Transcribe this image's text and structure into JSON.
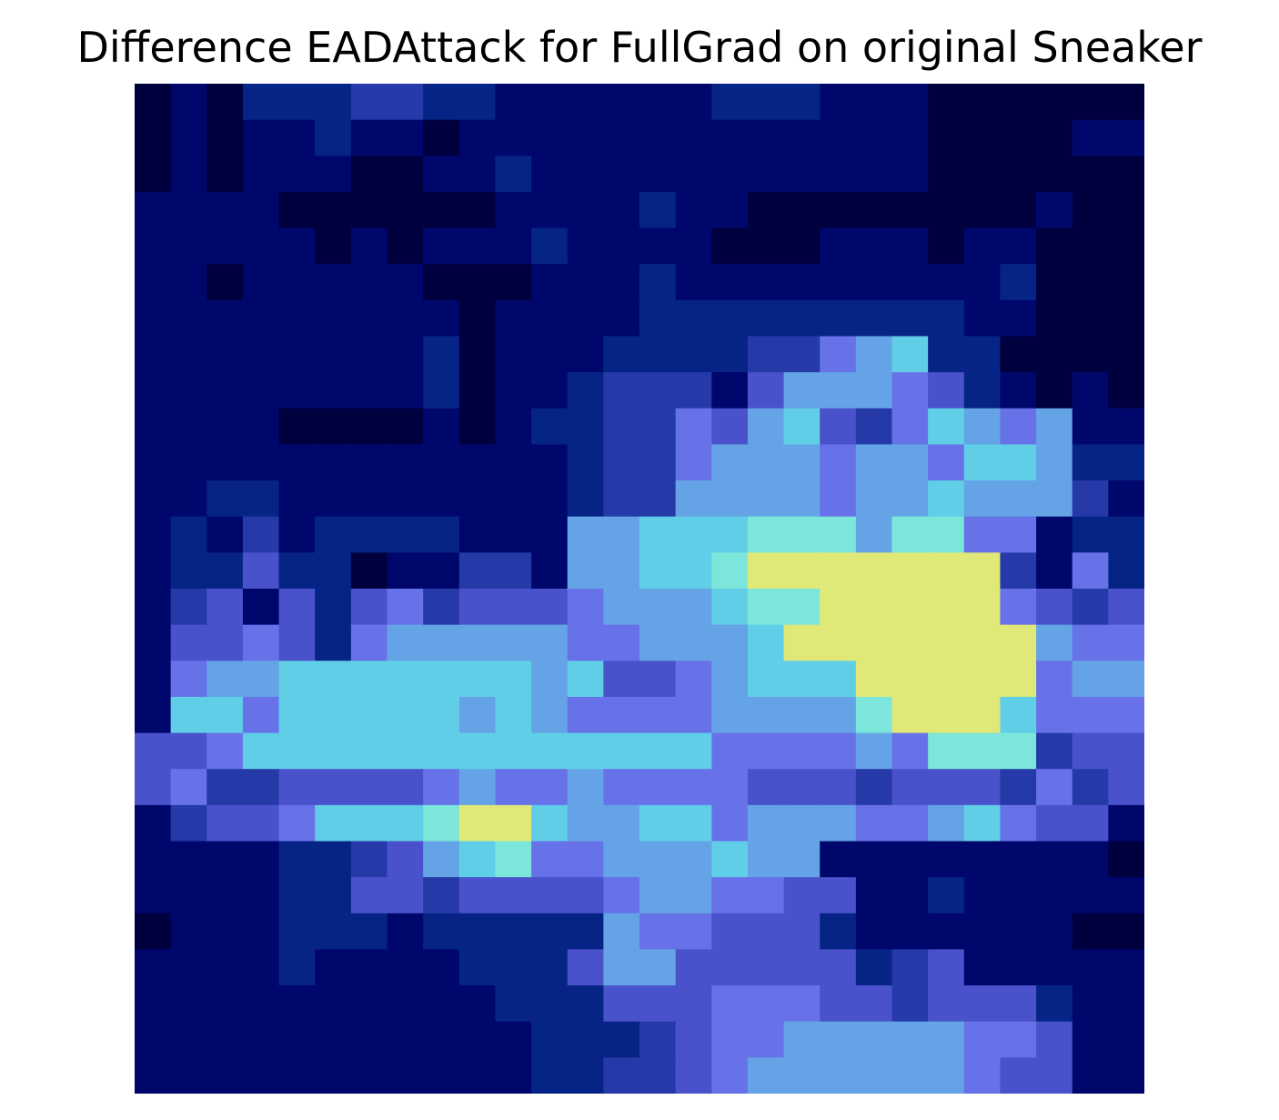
{
  "chart_data": {
    "type": "heatmap",
    "title": "Difference EADAttack for FullGrad on original Sneaker",
    "axes_visible": false,
    "grid": false,
    "colorbar": false,
    "rows": 28,
    "cols": 28,
    "value_range": [
      0,
      1
    ],
    "colormap_description": "low = dark navy, medium = blue/violet, high = cyan, peak = pale yellow-green",
    "colors": {
      "low": "#00004a",
      "mid": "#6468e0",
      "high": "#6ee0e8",
      "peak": "#e0e878"
    },
    "cells": [
      "0102223322111111222111000000",
      "0101121101111111111111000011",
      "0101110011211111111111000000",
      "1111000000111121100000000100",
      "1111101011121111000111011000",
      "1101111100011121111111112000",
      "1111111110111122222222211000",
      "1111111120111222233567220000",
      "1111111120112333146665421010",
      "1111000010122335467435765611",
      "1111111111112335666566577622",
      "1122111111112336666566766631",
      "1213122221116677788868855122",
      "1224220113316677899999993152",
      "1341424534445666788999995434",
      "1445425666665566679999999655",
      "1566777777767445677799999566",
      "1775777776765555666689997555",
      "4457777777777777555565888344",
      "4533444456556555544434443534",
      "1344577789976677566655675441",
      "1111223467855666766111111110",
      "1111224434444566554411211111",
      "0111222122222655444211111100",
      "1111211112224664444423411111",
      "1111111111222444555443444211",
      "1111111111122234556666655411",
      "1111111111122334566666654411"
    ]
  }
}
